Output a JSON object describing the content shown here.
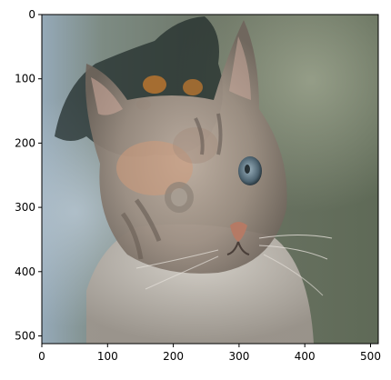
{
  "figure": {
    "image_description_icon": "cat-dog-blend-photo",
    "x_axis": {
      "ticks": [
        "0",
        "100",
        "200",
        "300",
        "400",
        "500"
      ]
    },
    "y_axis": {
      "ticks": [
        "0",
        "100",
        "200",
        "300",
        "400",
        "500"
      ]
    },
    "colors": {
      "axis": "#000000",
      "background": "#ffffff",
      "cat_fur": "#a89a8e",
      "dog_fur": "#1e2a28",
      "dog_tan": "#b8742f",
      "bg_green": "#6f7a68",
      "bg_blue": "#8fa3b3"
    }
  }
}
